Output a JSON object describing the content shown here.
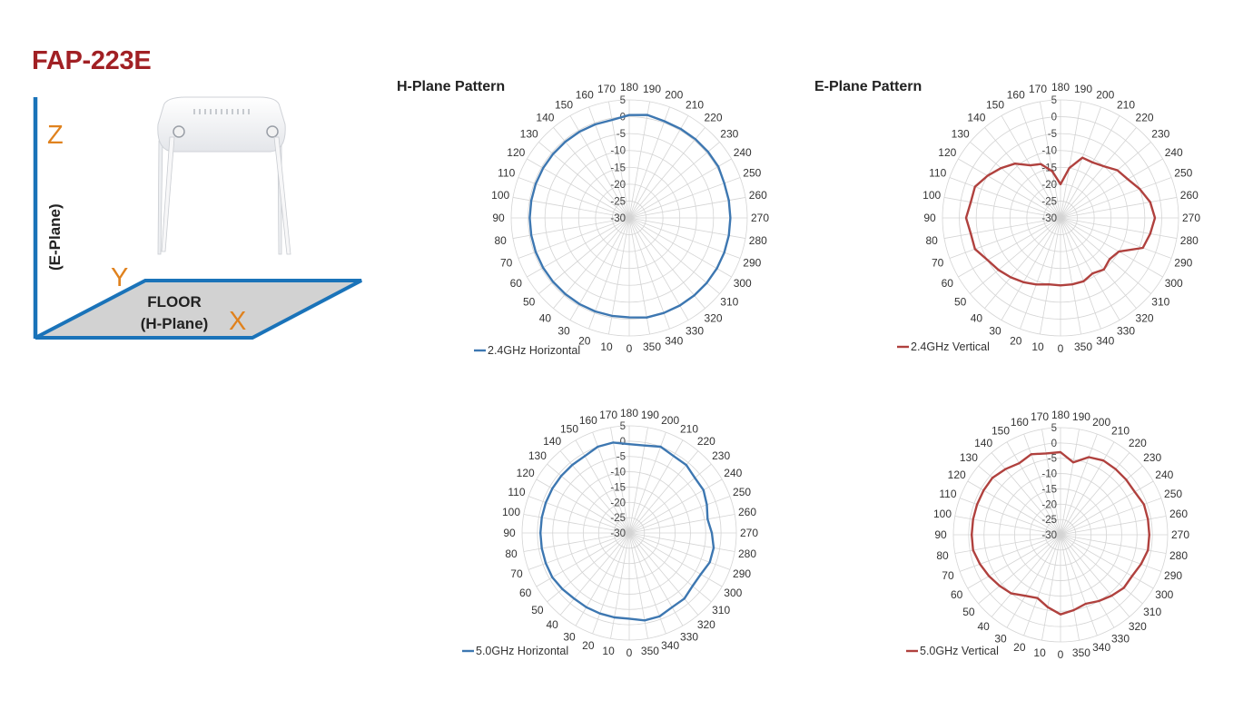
{
  "model": "FAP-223E",
  "colors": {
    "title": "#a12024",
    "axis_letter": "#e0821e",
    "frame": "#1a73b9",
    "floor": "#d2d2d2",
    "h_plane": "#3d77b1",
    "e_plane": "#b0413e"
  },
  "diagram": {
    "z_label": "Z",
    "y_label": "Y",
    "x_label": "X",
    "e_plane_label": "(E-Plane)",
    "floor_line1": "FLOOR",
    "floor_line2": "(H-Plane)"
  },
  "headings": {
    "h_plane": "H-Plane Pattern",
    "e_plane": "E-Plane Pattern"
  },
  "polar_axis": {
    "angle_labels": [
      "0",
      "10",
      "20",
      "30",
      "40",
      "50",
      "60",
      "70",
      "80",
      "90",
      "100",
      "110",
      "120",
      "130",
      "140",
      "150",
      "160",
      "170",
      "180",
      "190",
      "200",
      "210",
      "220",
      "230",
      "240",
      "250",
      "260",
      "270",
      "280",
      "290",
      "300",
      "310",
      "320",
      "330",
      "340",
      "350"
    ],
    "radial_labels": [
      "5",
      "0",
      "-5",
      "-10",
      "-15",
      "-20",
      "-25",
      "-30"
    ],
    "r_min": -30,
    "r_max": 5
  },
  "chart_data": [
    {
      "type": "polar-line",
      "plane": "H-Plane",
      "legend": "2.4GHz Horizontal",
      "color": "#3d77b1",
      "angles_deg": [
        0,
        10,
        20,
        30,
        40,
        50,
        60,
        70,
        80,
        90,
        100,
        110,
        120,
        130,
        140,
        150,
        160,
        170,
        180,
        190,
        200,
        210,
        220,
        230,
        240,
        250,
        260,
        270,
        280,
        290,
        300,
        310,
        320,
        330,
        340,
        350
      ],
      "gain_db": [
        -0.5,
        -0.5,
        -0.5,
        -0.5,
        -0.5,
        -0.5,
        -0.5,
        -0.5,
        -0.5,
        -0.5,
        -0.5,
        -0.5,
        -0.5,
        -0.5,
        -0.5,
        -0.5,
        -0.5,
        -0.5,
        0.5,
        1,
        0.5,
        0.5,
        0.5,
        0.5,
        0.5,
        0,
        0,
        0,
        0,
        0,
        0,
        0,
        0,
        0,
        0,
        0
      ]
    },
    {
      "type": "polar-line",
      "plane": "E-Plane",
      "legend": "2.4GHz Vertical",
      "color": "#b0413e",
      "angles_deg": [
        0,
        10,
        20,
        30,
        40,
        50,
        60,
        70,
        80,
        90,
        100,
        110,
        120,
        130,
        140,
        150,
        160,
        170,
        180,
        190,
        200,
        210,
        220,
        230,
        240,
        250,
        260,
        270,
        280,
        290,
        300,
        310,
        320,
        330,
        340,
        350
      ],
      "gain_db": [
        -10,
        -10,
        -9,
        -8,
        -7,
        -6,
        -5,
        -3,
        -3,
        -2,
        -3,
        -3,
        -5,
        -7,
        -9,
        -12,
        -13,
        -16,
        -20,
        -15,
        -11,
        -11,
        -10,
        -8,
        -7,
        -5,
        -3,
        -2,
        -3,
        -4,
        -10,
        -11,
        -10,
        -11,
        -10,
        -10
      ]
    },
    {
      "type": "polar-line",
      "plane": "H-Plane",
      "legend": "5.0GHz Horizontal",
      "color": "#3d77b1",
      "angles_deg": [
        0,
        10,
        20,
        30,
        40,
        50,
        60,
        70,
        80,
        90,
        100,
        110,
        120,
        130,
        140,
        150,
        160,
        170,
        180,
        190,
        200,
        210,
        220,
        230,
        240,
        250,
        260,
        270,
        280,
        290,
        300,
        310,
        320,
        330,
        340,
        350
      ],
      "gain_db": [
        -2,
        -2,
        -2,
        -2,
        -2,
        -1.5,
        -1,
        -1,
        -1,
        -1,
        -1,
        -1,
        -1,
        -1,
        -1,
        -1,
        0,
        0,
        -1,
        -1,
        0,
        -1,
        -1,
        -2,
        -2,
        -3,
        -4,
        -3,
        -2,
        -2,
        -3,
        -3,
        -2,
        -2,
        -1,
        -1
      ]
    },
    {
      "type": "polar-line",
      "plane": "E-Plane",
      "legend": "5.0GHz Vertical",
      "color": "#b0413e",
      "angles_deg": [
        0,
        10,
        20,
        30,
        40,
        50,
        60,
        70,
        80,
        90,
        100,
        110,
        120,
        130,
        140,
        150,
        160,
        170,
        180,
        190,
        200,
        210,
        220,
        230,
        240,
        250,
        260,
        270,
        280,
        290,
        300,
        310,
        320,
        330,
        340,
        350
      ],
      "gain_db": [
        -4,
        -6,
        -8,
        -7,
        -5,
        -4,
        -3,
        -2,
        -1,
        -1,
        -1,
        -1,
        -1,
        -1,
        -2,
        -3,
        -2,
        -3,
        -3,
        -6,
        -3,
        -2,
        -2,
        -2,
        -2,
        -1,
        -1,
        -1,
        -1,
        -2,
        -3,
        -3,
        -4,
        -5,
        -6,
        -5
      ]
    }
  ]
}
